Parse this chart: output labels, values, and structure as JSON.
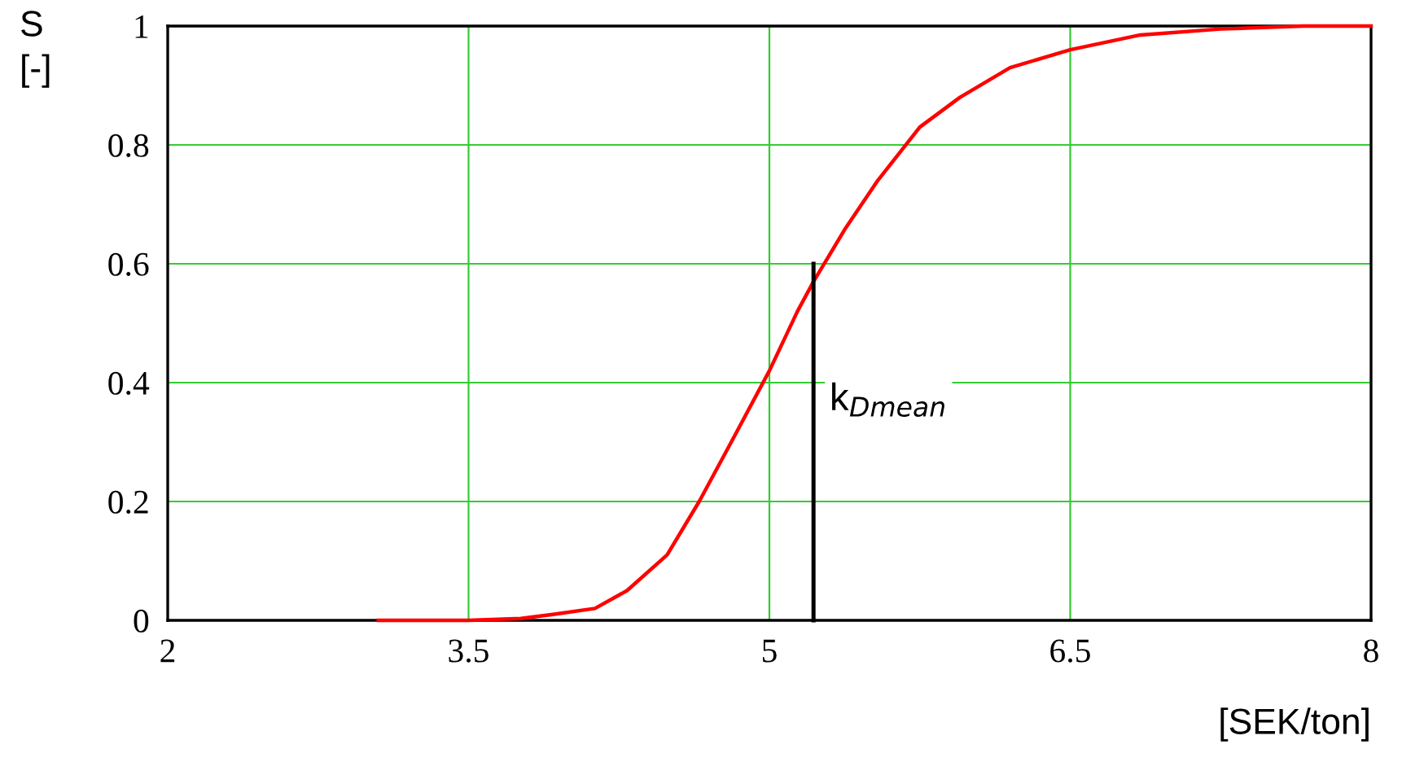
{
  "chart_data": {
    "type": "line",
    "xlabel": "[SEK/ton]",
    "ylabel": "S\n[-]",
    "series": [
      {
        "color": "#ff0000",
        "x": [
          3.05,
          3.5,
          3.76,
          3.92,
          4.13,
          4.29,
          4.49,
          4.65,
          4.81,
          5.0,
          5.14,
          5.22,
          5.38,
          5.54,
          5.75,
          5.95,
          6.2,
          6.5,
          6.85,
          7.25,
          7.66,
          8.0
        ],
        "values": [
          0,
          0,
          0.003,
          0.01,
          0.02,
          0.05,
          0.11,
          0.2,
          0.3,
          0.42,
          0.52,
          0.57,
          0.66,
          0.74,
          0.83,
          0.88,
          0.93,
          0.96,
          0.985,
          0.995,
          1.0,
          1.0
        ]
      },
      {
        "color": "#000000",
        "x": [
          5.22,
          5.22
        ],
        "values": [
          0,
          0.6
        ]
      }
    ],
    "annotations": [
      {
        "text": "k$_{Dmean}$",
        "x": 5.22,
        "y": 0.4
      }
    ],
    "xlim": [
      2,
      8
    ],
    "xticks": [
      2,
      3.5,
      5,
      6.5,
      8
    ],
    "ylim": [
      0,
      1
    ],
    "yticks": [
      0,
      0.2,
      0.4,
      0.6,
      0.8,
      1
    ],
    "grid": true,
    "marker": "none",
    "line_style": "solid"
  }
}
